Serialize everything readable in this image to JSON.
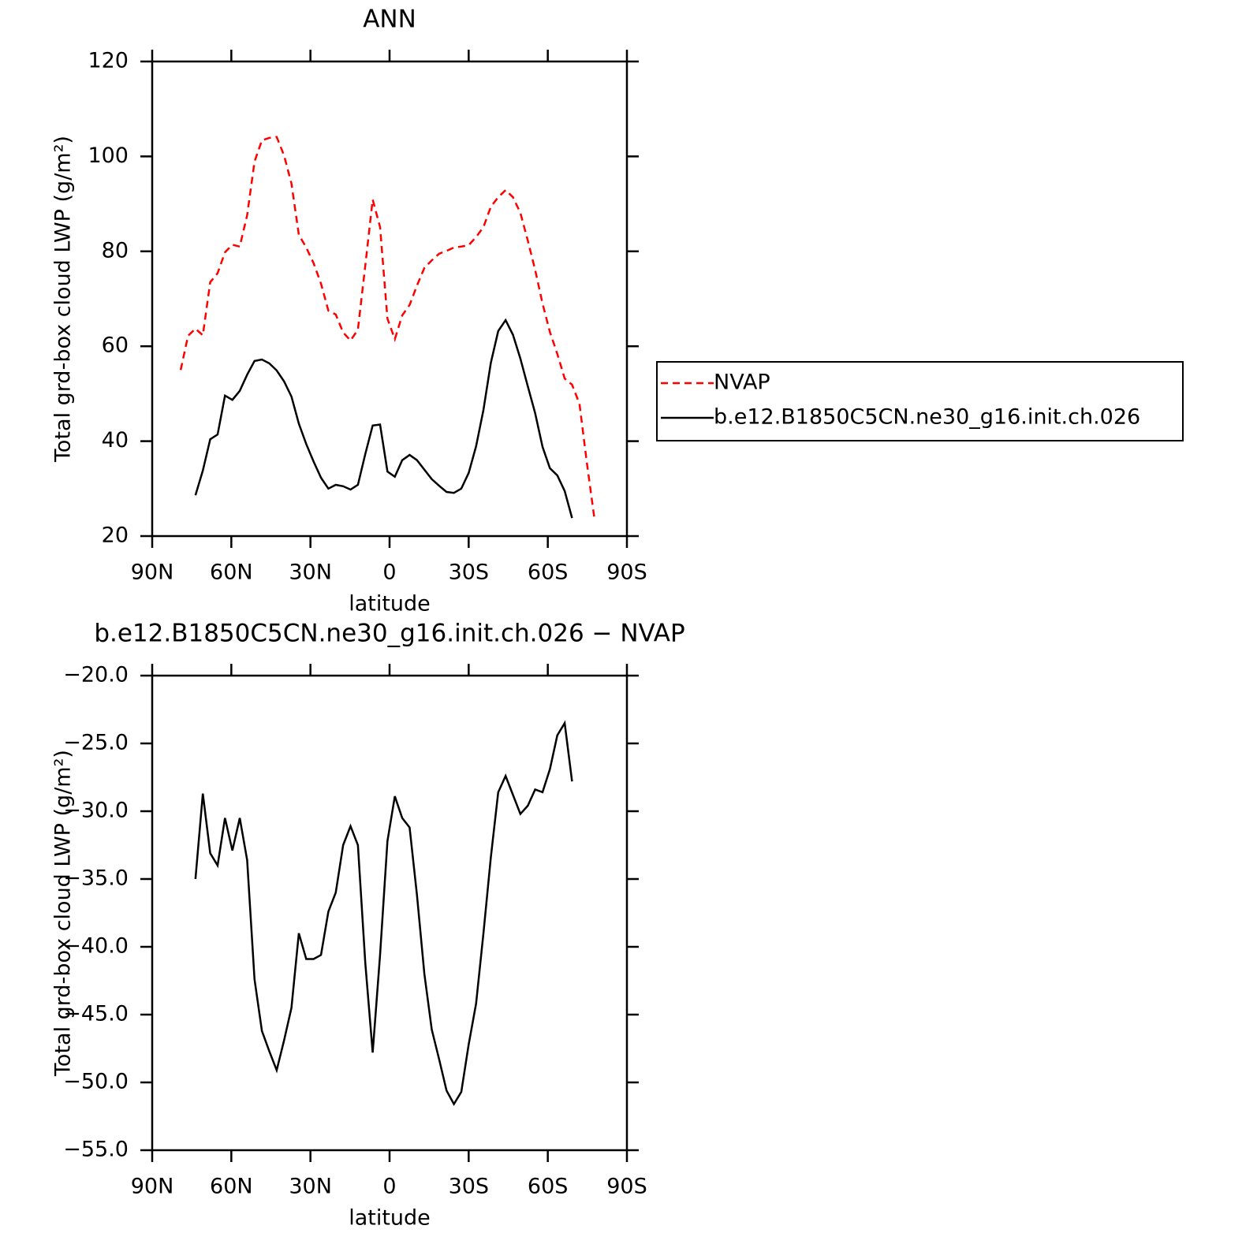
{
  "chart_data": [
    {
      "type": "line",
      "title": "ANN",
      "xlabel": "latitude",
      "ylabel": "Total grd-box cloud LWP (g/m²)",
      "xlim": [
        90,
        -90
      ],
      "ylim": [
        20,
        120
      ],
      "xticks": [
        {
          "value": 90,
          "label": "90N"
        },
        {
          "value": 60,
          "label": "60N"
        },
        {
          "value": 30,
          "label": "30N"
        },
        0,
        {
          "value": -30,
          "label": "30S"
        },
        {
          "value": -60,
          "label": "60S"
        },
        {
          "value": -90,
          "label": "90S"
        }
      ],
      "yticks": [
        20,
        40,
        60,
        80,
        100,
        120
      ],
      "legend": "right",
      "x": [
        79.2,
        76.4,
        73.6,
        70.8,
        68,
        65.2,
        62.4,
        59.6,
        56.8,
        54,
        51.2,
        48.4,
        45.6,
        42.8,
        40,
        37.2,
        34.4,
        31.6,
        28.8,
        26,
        23.2,
        20.4,
        17.6,
        14.8,
        12,
        9.2,
        6.4,
        3.6,
        0.8,
        -2,
        -4.8,
        -7.6,
        -10.4,
        -13.2,
        -16,
        -18.8,
        -21.6,
        -24.4,
        -27.2,
        -30,
        -32.8,
        -35.6,
        -38.4,
        -41.2,
        -44,
        -46.8,
        -49.6,
        -52.4,
        -55.2,
        -58,
        -60.8,
        -63.6,
        -66.4,
        -69.2,
        -72,
        -74.8,
        -77.6
      ],
      "series": [
        {
          "name": "NVAP",
          "color": "#ff0000",
          "dash": true,
          "values": [
            55.0,
            62.2,
            63.7,
            62.3,
            73.5,
            75.4,
            79.8,
            81.4,
            81.0,
            87.6,
            98.9,
            103.4,
            103.9,
            104.1,
            100.2,
            94.3,
            83.5,
            80.8,
            77.5,
            73.2,
            67.5,
            66.7,
            62.9,
            61.2,
            63.5,
            77.0,
            90.9,
            85.1,
            65.8,
            61.5,
            66.5,
            68.7,
            72.8,
            76.5,
            78.1,
            79.5,
            80.1,
            80.8,
            81.0,
            81.3,
            83.0,
            85.1,
            89.4,
            91.4,
            92.9,
            91.4,
            88.1,
            82.3,
            76.1,
            69.0,
            63.0,
            58.4,
            53.2,
            51.9,
            47.9,
            35.5,
            24.0
          ]
        },
        {
          "name": "b.e12.B1850C5CN.ne30_g16.init.ch.026",
          "color": "#000000",
          "dash": false,
          "values": [
            null,
            null,
            28.6,
            33.8,
            40.4,
            41.4,
            49.6,
            48.7,
            50.6,
            54.0,
            56.9,
            57.2,
            56.4,
            54.9,
            52.6,
            49.4,
            43.7,
            39.4,
            35.7,
            32.3,
            30.0,
            30.8,
            30.5,
            29.8,
            30.8,
            37.3,
            43.3,
            43.5,
            33.6,
            32.5,
            36.0,
            37.1,
            36.0,
            34.0,
            32.0,
            30.6,
            29.3,
            29.1,
            30.0,
            33.3,
            38.9,
            46.6,
            56.5,
            63.2,
            65.5,
            62.4,
            57.4,
            51.6,
            45.9,
            38.8,
            34.3,
            32.8,
            29.5,
            23.8,
            null,
            null,
            null
          ]
        }
      ]
    },
    {
      "type": "line",
      "title": "b.e12.B1850C5CN.ne30_g16.init.ch.026 − NVAP",
      "xlabel": "latitude",
      "ylabel": "Total grd-box cloud LWP (g/m²)",
      "xlim": [
        90,
        -90
      ],
      "ylim": [
        -55,
        -20
      ],
      "xticks": [
        {
          "value": 90,
          "label": "90N"
        },
        {
          "value": 60,
          "label": "60N"
        },
        {
          "value": 30,
          "label": "30N"
        },
        0,
        {
          "value": -30,
          "label": "30S"
        },
        {
          "value": -60,
          "label": "60S"
        },
        {
          "value": -90,
          "label": "90S"
        }
      ],
      "yticks": [
        {
          "value": -55,
          "label": "−55.0"
        },
        {
          "value": -50,
          "label": "−50.0"
        },
        {
          "value": -45,
          "label": "−45.0"
        },
        {
          "value": -40,
          "label": "−40.0"
        },
        {
          "value": -35,
          "label": "−35.0"
        },
        {
          "value": -30,
          "label": "−30.0"
        },
        {
          "value": -25,
          "label": "−25.0"
        },
        {
          "value": -20,
          "label": "−20.0"
        }
      ],
      "x": [
        79.2,
        76.4,
        73.6,
        70.8,
        68,
        65.2,
        62.4,
        59.6,
        56.8,
        54,
        51.2,
        48.4,
        45.6,
        42.8,
        40,
        37.2,
        34.4,
        31.6,
        28.8,
        26,
        23.2,
        20.4,
        17.6,
        14.8,
        12,
        9.2,
        6.4,
        3.6,
        0.8,
        -2,
        -4.8,
        -7.6,
        -10.4,
        -13.2,
        -16,
        -18.8,
        -21.6,
        -24.4,
        -27.2,
        -30,
        -32.8,
        -35.6,
        -38.4,
        -41.2,
        -44,
        -46.8,
        -49.6,
        -52.4,
        -55.2,
        -58,
        -60.8,
        -63.6,
        -66.4,
        -69.2,
        -72,
        -74.8,
        -77.6
      ],
      "series": [
        {
          "color": "#000000",
          "dash": false,
          "values": [
            null,
            null,
            -35.0,
            -28.7,
            -33.1,
            -34.0,
            -30.5,
            -32.9,
            -30.5,
            -33.6,
            -42.4,
            -46.2,
            -47.7,
            -49.1,
            -46.9,
            -44.5,
            -39.0,
            -40.9,
            -40.9,
            -40.6,
            -37.4,
            -36.0,
            -32.5,
            -31.1,
            -32.5,
            -41.2,
            -47.8,
            -40.6,
            -32.2,
            -28.9,
            -30.5,
            -31.2,
            -36.2,
            -42.0,
            -46.1,
            -48.3,
            -50.6,
            -51.6,
            -50.7,
            -47.2,
            -44.2,
            -39.0,
            -33.4,
            -28.6,
            -27.4,
            -28.8,
            -30.2,
            -29.6,
            -28.4,
            -28.6,
            -26.9,
            -24.4,
            -23.5,
            -27.8,
            null,
            null,
            null
          ]
        }
      ]
    }
  ]
}
